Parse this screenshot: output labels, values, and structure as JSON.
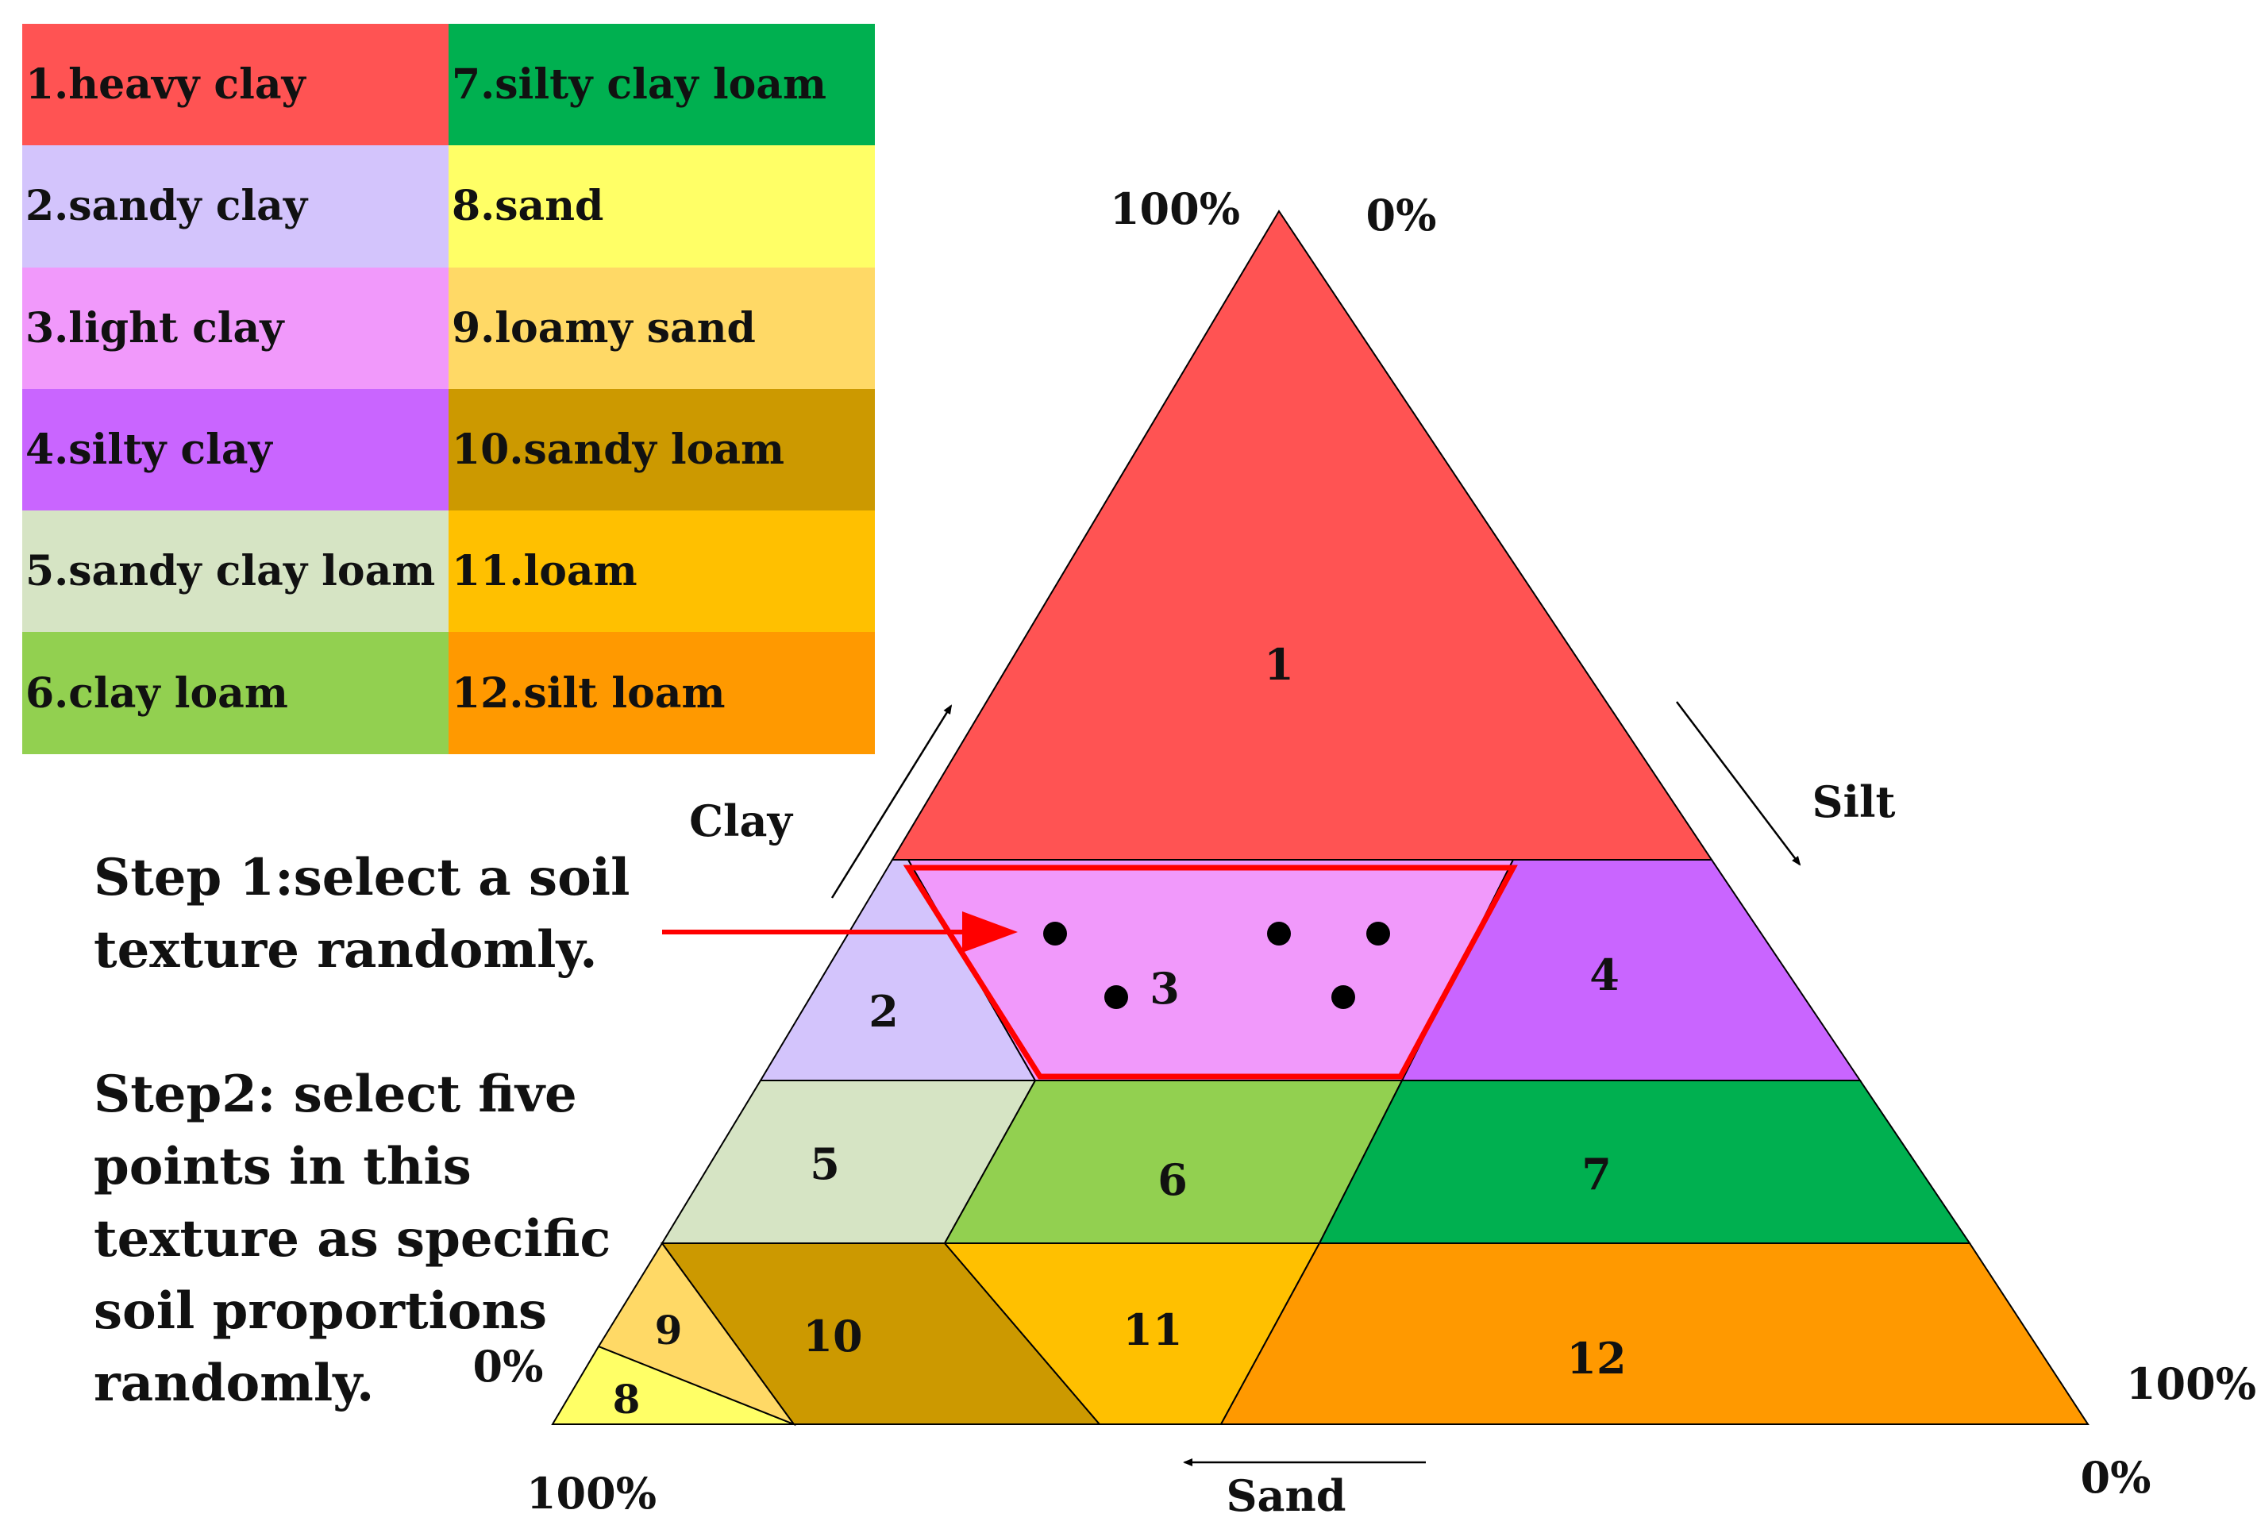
{
  "legend": [
    {
      "label": "1.heavy clay",
      "color": "#ff5353"
    },
    {
      "label": "7.silty clay loam",
      "color": "#00b050"
    },
    {
      "label": "2.sandy clay",
      "color": "#d3c4fc"
    },
    {
      "label": "8.sand",
      "color": "#ffff66"
    },
    {
      "label": "3.light clay",
      "color": "#f199fb"
    },
    {
      "label": "9.loamy sand",
      "color": "#ffd966"
    },
    {
      "label": "4.silty clay",
      "color": "#c965ff"
    },
    {
      "label": "10.sandy loam",
      "color": "#cc9900"
    },
    {
      "label": "5.sandy clay loam",
      "color": "#d6e4c4"
    },
    {
      "label": "11.loam",
      "color": "#ffc000"
    },
    {
      "label": "6.clay loam",
      "color": "#92d050"
    },
    {
      "label": "12.silt loam",
      "color": "#ff9900"
    }
  ],
  "regions": [
    {
      "number": "1",
      "name": "heavy clay",
      "color": "#ff5353"
    },
    {
      "number": "2",
      "name": "sandy clay",
      "color": "#d3c4fc"
    },
    {
      "number": "3",
      "name": "light clay",
      "color": "#f199fb"
    },
    {
      "number": "4",
      "name": "silty clay",
      "color": "#c965ff"
    },
    {
      "number": "5",
      "name": "sandy clay loam",
      "color": "#d6e4c4"
    },
    {
      "number": "6",
      "name": "clay loam",
      "color": "#92d050"
    },
    {
      "number": "7",
      "name": "silty clay loam",
      "color": "#00b050"
    },
    {
      "number": "8",
      "name": "sand",
      "color": "#ffff66"
    },
    {
      "number": "9",
      "name": "loamy sand",
      "color": "#ffd966"
    },
    {
      "number": "10",
      "name": "sandy loam",
      "color": "#cc9900"
    },
    {
      "number": "11",
      "name": "loam",
      "color": "#ffc000"
    },
    {
      "number": "12",
      "name": "silt loam",
      "color": "#ff9900"
    }
  ],
  "axes": {
    "clay": "Clay",
    "silt": "Silt",
    "sand": "Sand"
  },
  "percent_labels": {
    "top_left": "100%",
    "top_right": "0%",
    "bottom_left_side": "0%",
    "bottom_left_below": "100%",
    "bottom_right_side": "100%",
    "bottom_right_below": "0%"
  },
  "steps": {
    "step1": "Step 1:select a soil\ntexture randomly.",
    "step2": "Step2: select five\npoints in this\ntexture as specific\nsoil proportions\nrandomly."
  },
  "colors": {
    "outline": "#000000",
    "highlight": "#ff0000",
    "sample_point": "#000000"
  }
}
